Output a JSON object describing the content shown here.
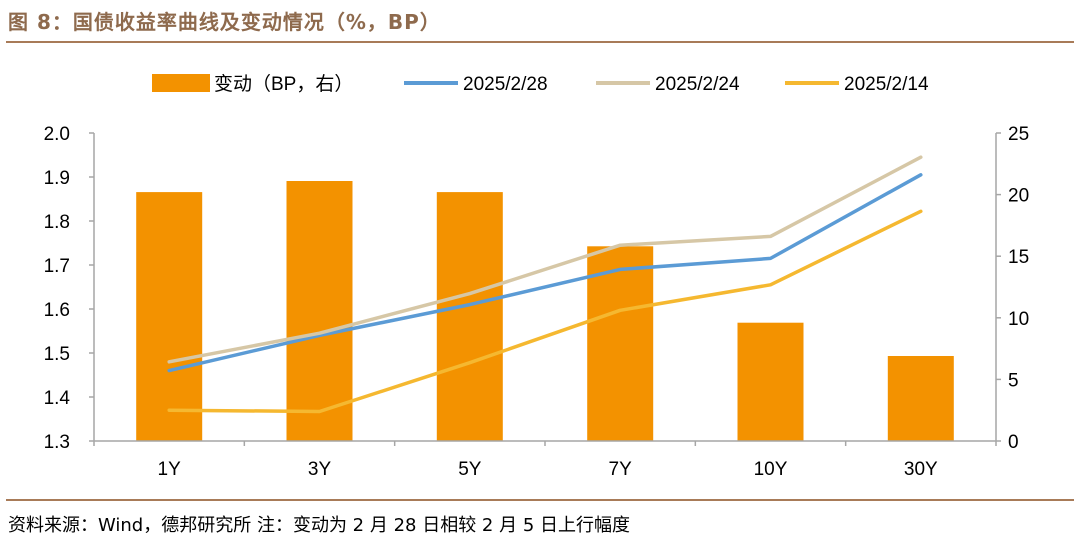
{
  "header": {
    "title": "图 8：国债收益率曲线及变动情况（%，BP）"
  },
  "footer": {
    "source": "资料来源：Wind，德邦研究所 注：变动为 2 月 28 日相较 2 月 5 日上行幅度"
  },
  "chart_data": {
    "type": "bar+line",
    "categories": [
      "1Y",
      "3Y",
      "5Y",
      "7Y",
      "10Y",
      "30Y"
    ],
    "bars": {
      "name": "变动（BP，右）",
      "axis": "right",
      "color": "#f39200",
      "values": [
        20.2,
        21.1,
        20.2,
        15.8,
        9.6,
        6.9
      ]
    },
    "series": [
      {
        "name": "2025/2/28",
        "axis": "left",
        "color": "#5b9bd5",
        "values": [
          1.46,
          1.54,
          1.61,
          1.69,
          1.715,
          1.905
        ]
      },
      {
        "name": "2025/2/24",
        "axis": "left",
        "color": "#d6c7a6",
        "values": [
          1.48,
          1.545,
          1.635,
          1.745,
          1.765,
          1.945
        ]
      },
      {
        "name": "2025/2/14",
        "axis": "left",
        "color": "#f5b830",
        "values": [
          1.37,
          1.367,
          1.478,
          1.597,
          1.655,
          1.822
        ]
      }
    ],
    "y_left": {
      "min": 1.3,
      "max": 2.0,
      "ticks": [
        "1.3",
        "1.4",
        "1.5",
        "1.6",
        "1.7",
        "1.8",
        "1.9",
        "2.0"
      ]
    },
    "y_right": {
      "min": 0,
      "max": 25,
      "ticks": [
        "0",
        "5",
        "10",
        "15",
        "20",
        "25"
      ]
    },
    "grid": false,
    "legend_position": "top"
  }
}
